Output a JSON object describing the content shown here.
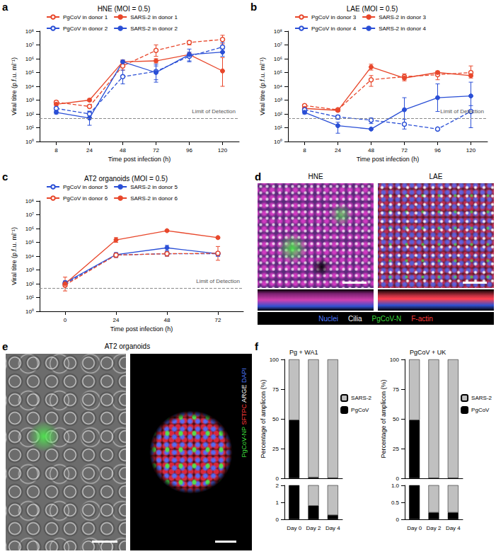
{
  "chart_data": [
    {
      "panel": "a",
      "type": "line",
      "title": "HNE (MOI = 0.5)",
      "x_label": "Time post infection (h)",
      "y_label": "Viral titre (p.f.u. ml⁻¹)",
      "categories": [
        "8",
        "24",
        "48",
        "72",
        "96",
        "120"
      ],
      "log": "y",
      "grid": false,
      "legend": "upper left",
      "ylim": [
        1,
        100000000
      ],
      "yticks": [
        {
          "value": 1,
          "label": "10⁰"
        },
        {
          "value": 10,
          "label": "10¹"
        },
        {
          "value": 100,
          "label": "10²"
        },
        {
          "value": 1000,
          "label": "10³"
        },
        {
          "value": 10000,
          "label": "10⁴"
        },
        {
          "value": 100000,
          "label": "10⁵"
        },
        {
          "value": 1000000,
          "label": "10⁶"
        },
        {
          "value": 10000000,
          "label": "10⁷"
        },
        {
          "value": 100000000,
          "label": "10⁸"
        }
      ],
      "annotations": [
        {
          "text": "Limit of Detection",
          "y": 50
        }
      ],
      "series": [
        {
          "name": "PgCoV in donor 1",
          "color": "#e8472b",
          "marker": "open_circle",
          "line_style": "dashed",
          "values": [
            700,
            350,
            300000,
            4000000,
            15000000,
            25000000
          ],
          "errors": [
            [
              500,
              900
            ],
            [
              300,
              450
            ],
            [
              150000,
              500000
            ],
            [
              1500000,
              10000000
            ],
            [
              10000000,
              20000000
            ],
            [
              12000000,
              50000000
            ]
          ]
        },
        {
          "name": "SARS-2 in donor 1",
          "color": "#e8472b",
          "marker": "circle",
          "line_style": "solid",
          "values": [
            500,
            1000,
            600000,
            700000,
            2000000,
            130000
          ],
          "errors": [
            [
              400,
              600
            ],
            [
              800,
              1300
            ],
            [
              400000,
              800000
            ],
            [
              500000,
              1000000
            ],
            [
              1500000,
              2500000
            ],
            [
              10000,
              1200000
            ]
          ]
        },
        {
          "name": "PgCoV in donor 2",
          "color": "#2a4fd6",
          "marker": "open_circle",
          "line_style": "dashed",
          "values": [
            250,
            100,
            50000,
            120000,
            1500000,
            7000000
          ],
          "errors": [
            [
              180,
              320
            ],
            [
              60,
              160
            ],
            [
              15000,
              150000
            ],
            [
              30000,
              300000
            ],
            [
              700000,
              3000000
            ],
            [
              3000000,
              15000000
            ]
          ]
        },
        {
          "name": "SARS-2 in donor 2",
          "color": "#2a4fd6",
          "marker": "circle",
          "line_style": "solid",
          "values": [
            130,
            50,
            600000,
            100000,
            2000000,
            3000000
          ],
          "errors": [
            [
              100,
              160
            ],
            [
              15,
              150
            ],
            [
              400000,
              800000
            ],
            [
              20000,
              400000
            ],
            [
              600000,
              5000000
            ],
            [
              1500000,
              5000000
            ]
          ]
        }
      ]
    },
    {
      "panel": "b",
      "type": "line",
      "title": "LAE (MOI = 0.5)",
      "x_label": "Time post infection (h)",
      "y_label": "Viral titre (p.f.u. ml⁻¹)",
      "categories": [
        "8",
        "24",
        "48",
        "72",
        "96",
        "120"
      ],
      "log": "y",
      "grid": false,
      "legend": "upper left",
      "ylim": [
        1,
        100000000
      ],
      "yticks": [
        {
          "value": 1,
          "label": "10⁰"
        },
        {
          "value": 10,
          "label": "10¹"
        },
        {
          "value": 100,
          "label": "10²"
        },
        {
          "value": 1000,
          "label": "10³"
        },
        {
          "value": 10000,
          "label": "10⁴"
        },
        {
          "value": 100000,
          "label": "10⁵"
        },
        {
          "value": 1000000,
          "label": "10⁶"
        },
        {
          "value": 10000000,
          "label": "10⁷"
        },
        {
          "value": 100000000,
          "label": "10⁸"
        }
      ],
      "annotations": [
        {
          "text": "Limit of Detection",
          "y": 50
        }
      ],
      "series": [
        {
          "name": "PgCoV in donor 3",
          "color": "#e8472b",
          "marker": "open_circle",
          "line_style": "dashed",
          "values": [
            400,
            200,
            30000,
            50000,
            70000,
            100000
          ],
          "errors": [
            [
              300,
              500
            ],
            [
              150,
              250
            ],
            [
              10000,
              60000
            ],
            [
              25000,
              80000
            ],
            [
              30000,
              120000
            ],
            [
              50000,
              300000
            ]
          ]
        },
        {
          "name": "SARS-2 in donor 3",
          "color": "#e8472b",
          "marker": "circle",
          "line_style": "solid",
          "values": [
            250,
            180,
            250000,
            40000,
            100000,
            60000
          ],
          "errors": [
            [
              200,
              300
            ],
            [
              150,
              220
            ],
            [
              150000,
              400000
            ],
            [
              30000,
              50000
            ],
            [
              70000,
              130000
            ],
            [
              40000,
              80000
            ]
          ]
        },
        {
          "name": "PgCoV in donor 4",
          "color": "#2a4fd6",
          "marker": "open_circle",
          "line_style": "dashed",
          "values": [
            200,
            60,
            35,
            18,
            8,
            150
          ],
          "errors": [
            [
              150,
              250
            ],
            [
              40,
              80
            ],
            [
              20,
              50
            ],
            [
              8,
              40
            ],
            null,
            [
              10,
              400
            ]
          ]
        },
        {
          "name": "SARS-2 in donor 4",
          "color": "#2a4fd6",
          "marker": "circle",
          "line_style": "solid",
          "values": [
            130,
            14,
            8,
            200,
            1500,
            2000
          ],
          "errors": [
            [
              100,
              160
            ],
            [
              4,
              25
            ],
            null,
            [
              20,
              1500
            ],
            [
              150,
              15000
            ],
            [
              150,
              20000
            ]
          ]
        }
      ]
    },
    {
      "panel": "c",
      "type": "line",
      "title": "AT2 organoids (MOI = 0.5)",
      "x_label": "Time post infection (h)",
      "y_label": "Viral titre (p.f.u. ml⁻¹)",
      "categories": [
        "0",
        "24",
        "48",
        "72"
      ],
      "log": "y",
      "grid": false,
      "legend": "upper left",
      "ylim": [
        1,
        100000000
      ],
      "yticks": [
        {
          "value": 1,
          "label": "10⁰"
        },
        {
          "value": 10,
          "label": "10¹"
        },
        {
          "value": 100,
          "label": "10²"
        },
        {
          "value": 1000,
          "label": "10³"
        },
        {
          "value": 10000,
          "label": "10⁴"
        },
        {
          "value": 100000,
          "label": "10⁵"
        },
        {
          "value": 1000000,
          "label": "10⁶"
        },
        {
          "value": 10000000,
          "label": "10⁷"
        },
        {
          "value": 100000000,
          "label": "10⁸"
        }
      ],
      "annotations": [
        {
          "text": "Limit of Detection",
          "y": 50
        }
      ],
      "series": [
        {
          "name": "PgCoV in donor 5",
          "color": "#2a4fd6",
          "marker": "open_circle",
          "line_style": "dashed",
          "values": [
            100,
            12000,
            15000,
            15000
          ],
          "errors": [
            [
              60,
              150
            ],
            [
              8000,
              18000
            ],
            [
              10000,
              20000
            ],
            [
              10000,
              20000
            ]
          ]
        },
        {
          "name": "SARS-2 in donor 5",
          "color": "#2a4fd6",
          "marker": "circle",
          "line_style": "solid",
          "values": [
            120,
            13000,
            40000,
            15000
          ],
          "errors": [
            [
              80,
              160
            ],
            [
              9000,
              17000
            ],
            [
              25000,
              60000
            ],
            [
              10000,
              20000
            ]
          ]
        },
        {
          "name": "PgCoV in donor 6",
          "color": "#e8472b",
          "marker": "open_circle",
          "line_style": "dashed",
          "values": [
            80,
            12000,
            15000,
            16000
          ],
          "errors": [
            [
              30,
              300
            ],
            [
              8000,
              16000
            ],
            [
              10000,
              20000
            ],
            [
              5000,
              50000
            ]
          ]
        },
        {
          "name": "SARS-2 in donor 6",
          "color": "#e8472b",
          "marker": "circle",
          "line_style": "solid",
          "values": [
            100,
            150000,
            700000,
            220000
          ],
          "errors": [
            [
              60,
              150
            ],
            [
              100000,
              220000
            ],
            [
              600000,
              800000
            ],
            [
              180000,
              260000
            ]
          ]
        }
      ]
    },
    {
      "panel": "f",
      "type": "bar",
      "stacked": true,
      "title": "Pg + WA1",
      "y_label": "Percentage of amplicon (%)",
      "legend": "right",
      "grid": false,
      "categories": [
        "Day 0",
        "Day 2",
        "Day 4"
      ],
      "ylim": [
        0,
        100
      ],
      "yticks": [
        0,
        25,
        50,
        75,
        100
      ],
      "ylim_lower": [
        0,
        2
      ],
      "yticks_lower": [
        0,
        1,
        2
      ],
      "series": [
        {
          "name": "PgCoV",
          "color": "#000000",
          "values": [
            49,
            0.8,
            0.25
          ]
        },
        {
          "name": "SARS-2",
          "color": "#c0c0c0",
          "values": [
            51,
            99.2,
            99.75
          ]
        }
      ]
    },
    {
      "type": "bar",
      "stacked": true,
      "title": "PgCoV + UK",
      "y_label": "Percentage of amplicon (%)",
      "legend": "right",
      "grid": false,
      "categories": [
        "Day 0",
        "Day 2",
        "Day 4"
      ],
      "ylim": [
        0,
        100
      ],
      "yticks": [
        0,
        25,
        50,
        75,
        100
      ],
      "ylim_lower": [
        0,
        1
      ],
      "yticks_lower": [
        0,
        0.5,
        {
          "value": 1,
          "label": "1.0"
        }
      ],
      "series": [
        {
          "name": "PgCoV",
          "color": "#000000",
          "values": [
            49,
            0.2,
            0.2
          ]
        },
        {
          "name": "SARS-2",
          "color": "#c0c0c0",
          "values": [
            51,
            99.8,
            99.8
          ]
        }
      ]
    }
  ],
  "images": [
    {
      "panel": "d",
      "type": "image",
      "views": [
        "HNE",
        "LAE"
      ],
      "channels": [
        {
          "name": "Nuclei",
          "color": "#4f7bff"
        },
        {
          "name": "Cilia",
          "color": "#ffffff"
        },
        {
          "name": "PgCoV-N",
          "color": "#3ddc3d"
        },
        {
          "name": "F-actin",
          "color": "#ff3b3b"
        }
      ]
    },
    {
      "panel": "e",
      "type": "image",
      "title": "AT2 organoids",
      "channels": [
        {
          "name": "PgCoV-NP",
          "color": "#3ddc3d"
        },
        {
          "name": "SFTPC",
          "color": "#ff3b3b"
        },
        {
          "name": "ARGE",
          "color": "#ffffff"
        },
        {
          "name": "DAPI",
          "color": "#4f7bff"
        }
      ]
    }
  ]
}
